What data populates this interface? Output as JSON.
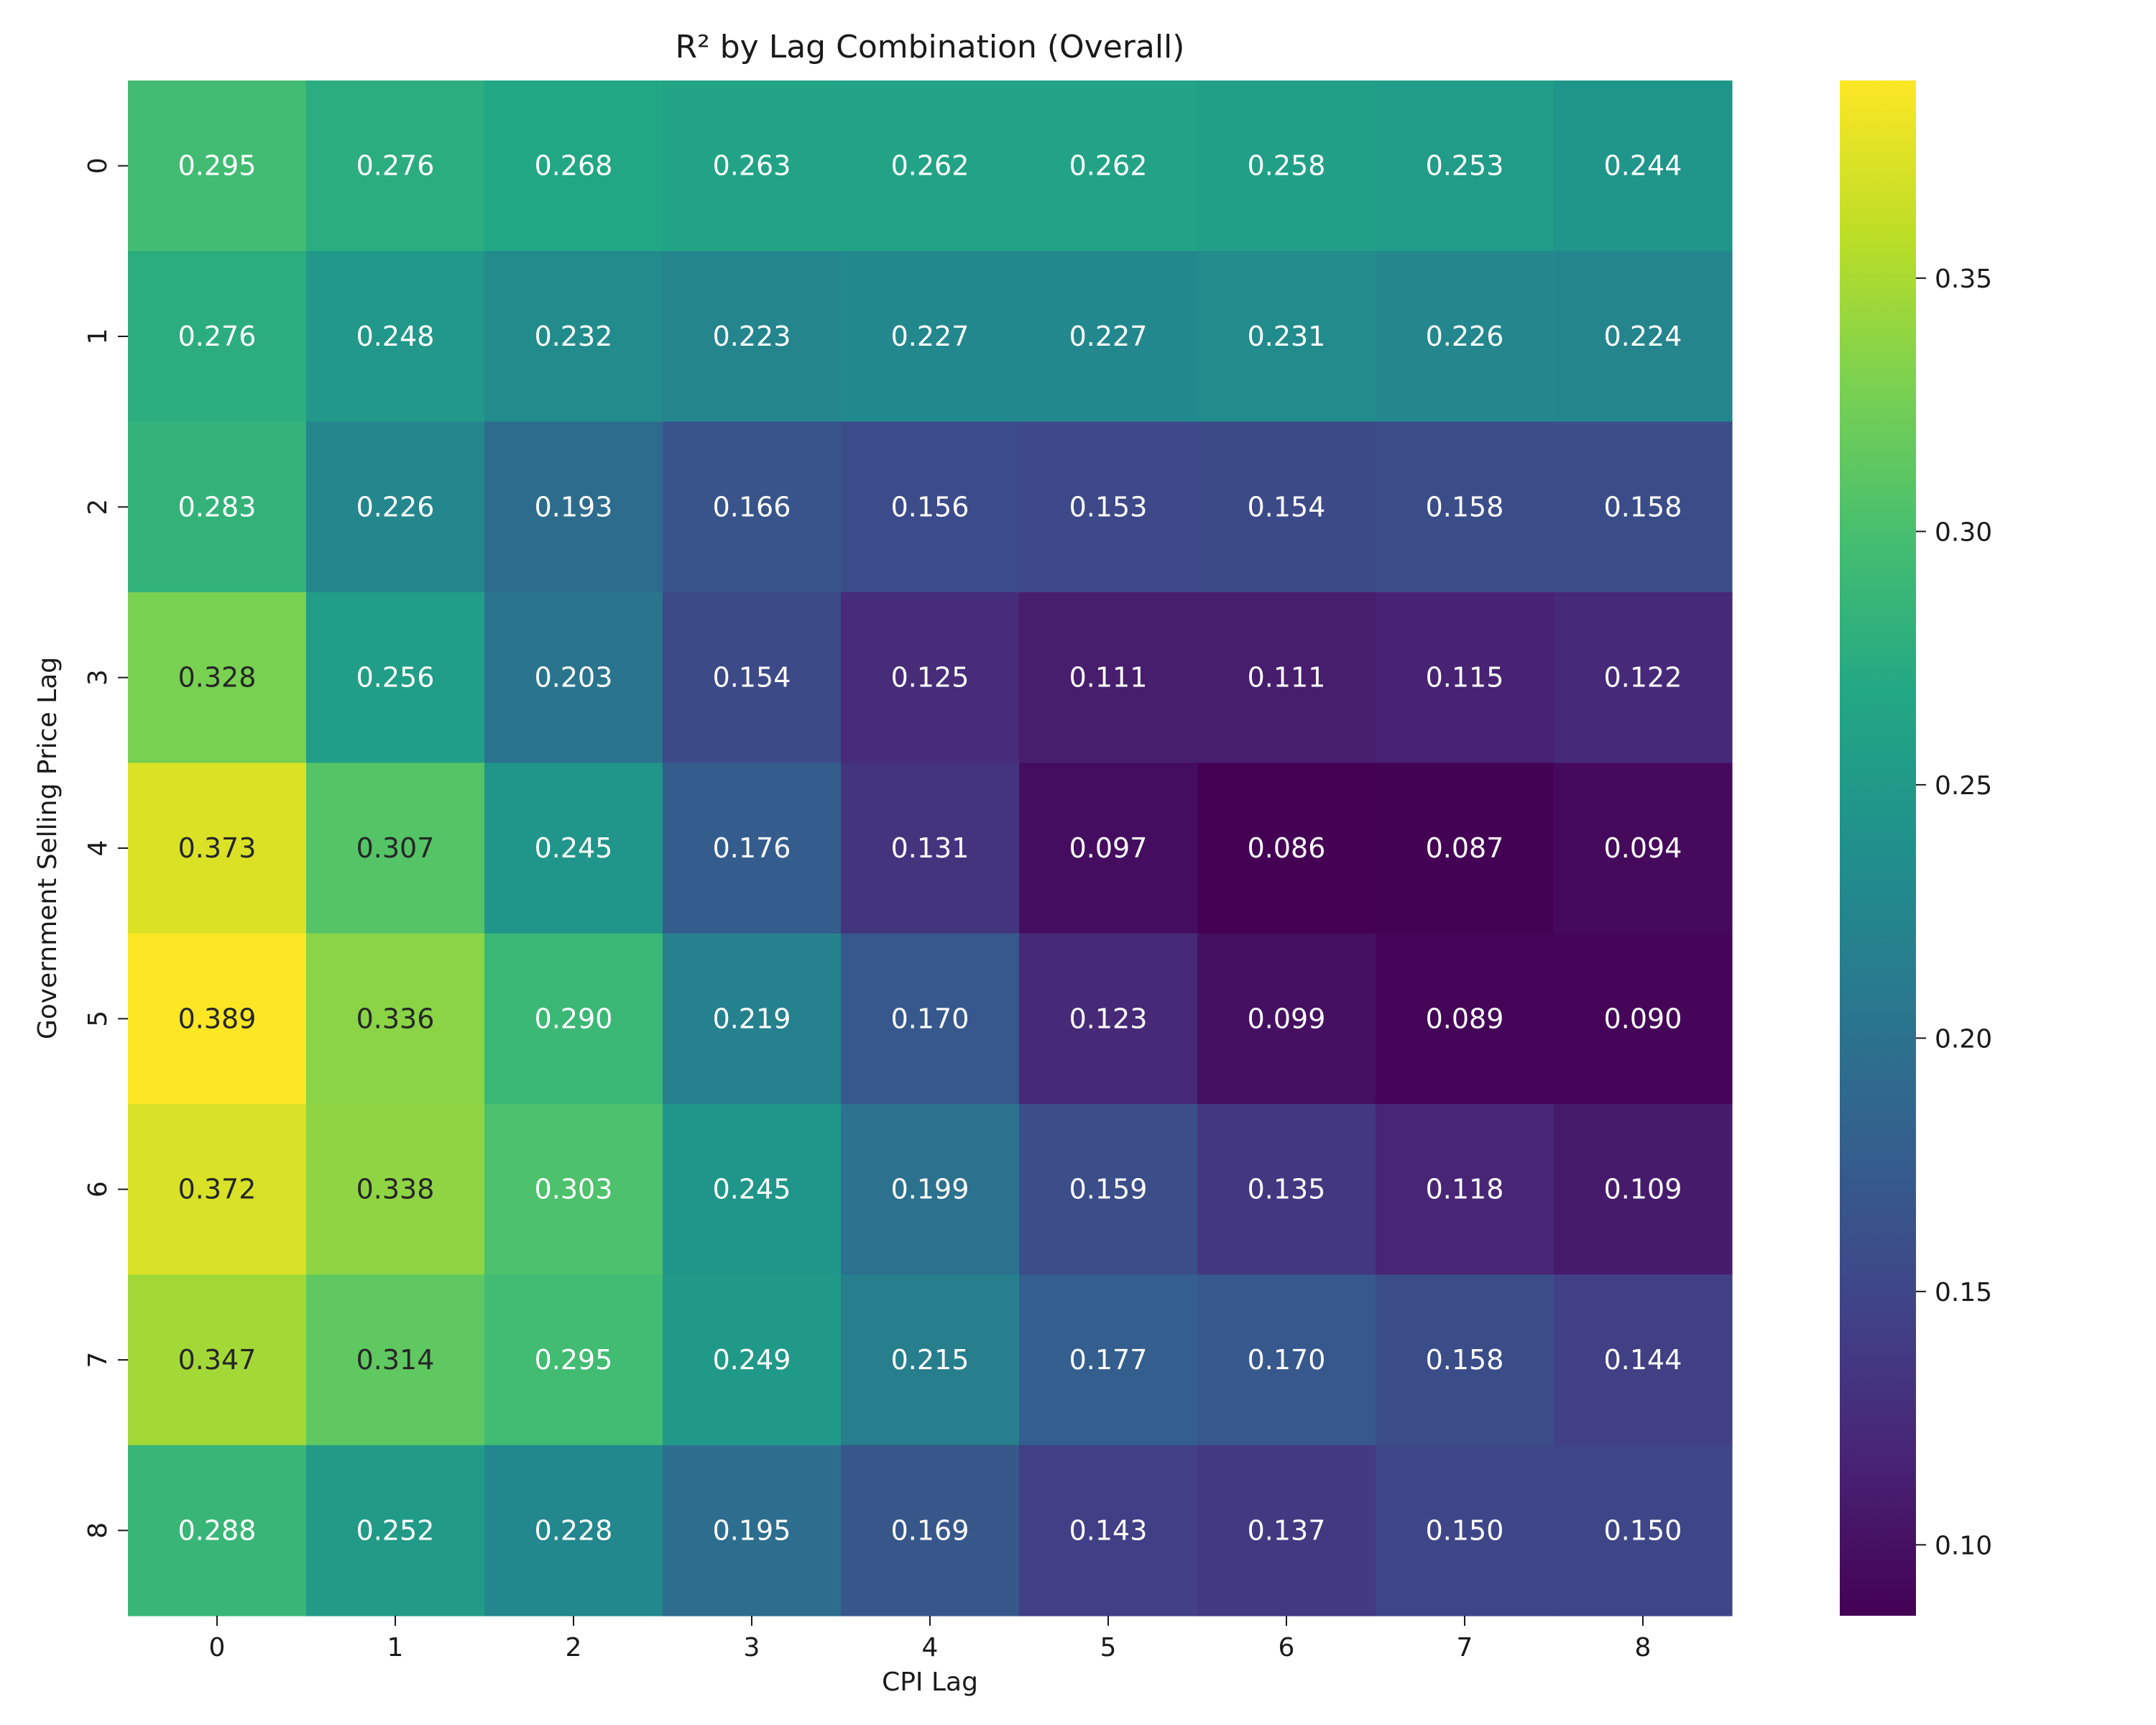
{
  "chart_data": {
    "type": "heatmap",
    "title": "R² by Lag Combination (Overall)",
    "xlabel": "CPI Lag",
    "ylabel": "Government Selling Price Lag",
    "x_categories": [
      "0",
      "1",
      "2",
      "3",
      "4",
      "5",
      "6",
      "7",
      "8"
    ],
    "y_categories": [
      "0",
      "1",
      "2",
      "3",
      "4",
      "5",
      "6",
      "7",
      "8"
    ],
    "values": [
      [
        0.295,
        0.276,
        0.268,
        0.263,
        0.262,
        0.262,
        0.258,
        0.253,
        0.244
      ],
      [
        0.276,
        0.248,
        0.232,
        0.223,
        0.227,
        0.227,
        0.231,
        0.226,
        0.224
      ],
      [
        0.283,
        0.226,
        0.193,
        0.166,
        0.156,
        0.153,
        0.154,
        0.158,
        0.158
      ],
      [
        0.328,
        0.256,
        0.203,
        0.154,
        0.125,
        0.111,
        0.111,
        0.115,
        0.122
      ],
      [
        0.373,
        0.307,
        0.245,
        0.176,
        0.131,
        0.097,
        0.086,
        0.087,
        0.094
      ],
      [
        0.389,
        0.336,
        0.29,
        0.219,
        0.17,
        0.123,
        0.099,
        0.089,
        0.09
      ],
      [
        0.372,
        0.338,
        0.303,
        0.245,
        0.199,
        0.159,
        0.135,
        0.118,
        0.109
      ],
      [
        0.347,
        0.314,
        0.295,
        0.249,
        0.215,
        0.177,
        0.17,
        0.158,
        0.144
      ],
      [
        0.288,
        0.252,
        0.228,
        0.195,
        0.169,
        0.143,
        0.137,
        0.15,
        0.15
      ]
    ],
    "value_format": "0.000",
    "colormap": "viridis",
    "colorbar": {
      "range": [
        0.086,
        0.389
      ],
      "ticks": [
        0.1,
        0.15,
        0.2,
        0.25,
        0.3,
        0.35
      ],
      "tick_labels": [
        "0.10",
        "0.15",
        "0.20",
        "0.25",
        "0.30",
        "0.35"
      ]
    },
    "grid": false
  }
}
